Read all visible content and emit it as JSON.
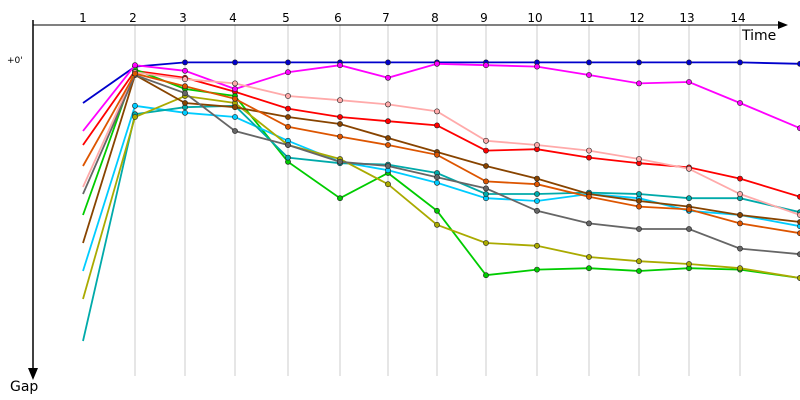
{
  "chart_data": {
    "type": "line",
    "title": "",
    "xlabel": "Time",
    "ylabel": "Gap",
    "zero_label": "+0'",
    "x_ticks": [
      "1",
      "2",
      "3",
      "4",
      "5",
      "6",
      "7",
      "8",
      "9",
      "10",
      "11",
      "12",
      "13",
      "14"
    ],
    "grid": "vertical",
    "series": [
      {
        "color": "#0000cc",
        "values": [
          30,
          4,
          1,
          1,
          1,
          1,
          1,
          1,
          1,
          1,
          1,
          1,
          1,
          1,
          2
        ]
      },
      {
        "color": "#ff0000",
        "values": [
          60,
          7,
          12,
          22,
          34,
          40,
          43,
          46,
          64,
          63,
          69,
          73,
          76,
          84,
          97
        ]
      },
      {
        "color": "#00cc00",
        "values": [
          110,
          6,
          20,
          25,
          72,
          98,
          80,
          107,
          153,
          149,
          148,
          150,
          148,
          149,
          155
        ]
      },
      {
        "color": "#ff00ff",
        "values": [
          50,
          3,
          7,
          20,
          8,
          3,
          12,
          2,
          3,
          4,
          10,
          16,
          15,
          30,
          48
        ]
      },
      {
        "color": "#00ccff",
        "values": [
          150,
          32,
          37,
          40,
          57,
          72,
          78,
          87,
          98,
          100,
          95,
          98,
          107,
          110,
          118
        ]
      },
      {
        "color": "#00aaaa",
        "values": [
          200,
          38,
          33,
          32,
          69,
          73,
          74,
          80,
          95,
          95,
          94,
          95,
          98,
          98,
          108
        ]
      },
      {
        "color": "#aaaa00",
        "values": [
          170,
          40,
          25,
          30,
          60,
          70,
          88,
          117,
          130,
          132,
          140,
          143,
          145,
          148,
          155
        ]
      },
      {
        "color": "#ffaaaa",
        "values": [
          90,
          8,
          13,
          16,
          25,
          28,
          31,
          36,
          57,
          60,
          64,
          70,
          77,
          95,
          110
        ]
      },
      {
        "color": "#884400",
        "values": [
          130,
          10,
          30,
          33,
          40,
          45,
          55,
          65,
          75,
          84,
          95,
          100,
          104,
          110,
          115
        ]
      },
      {
        "color": "#666666",
        "values": [
          95,
          10,
          23,
          50,
          60,
          72,
          75,
          83,
          91,
          107,
          116,
          120,
          120,
          134,
          138
        ]
      },
      {
        "color": "#dd5500",
        "values": [
          75,
          9,
          18,
          27,
          47,
          54,
          60,
          67,
          86,
          88,
          97,
          104,
          106,
          116,
          123
        ]
      }
    ]
  }
}
